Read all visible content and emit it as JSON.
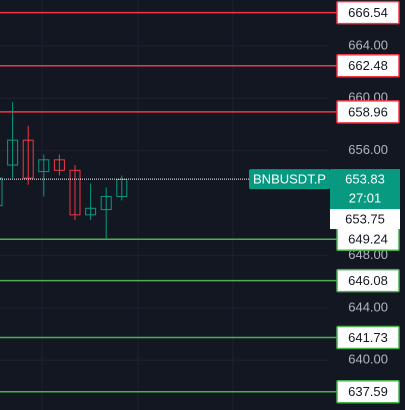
{
  "chart_data": {
    "type": "candlestick",
    "ylim": [
      636.2,
      667.5
    ],
    "yticks": [
      {
        "value": 664,
        "label": "664.00"
      },
      {
        "value": 660,
        "label": "660.00"
      },
      {
        "value": 656,
        "label": "656.00"
      },
      {
        "value": 648,
        "label": "648.00"
      },
      {
        "value": 644,
        "label": "644.00"
      },
      {
        "value": 640,
        "label": "640.00"
      }
    ],
    "grid": true,
    "up_color": "#089981",
    "down_color": "#f23645",
    "candles": {
      "open": [
        651.8,
        654.9,
        656.8,
        654.4,
        655.3,
        654.5,
        651.1,
        651.5,
        652.5
      ],
      "high": [
        654.5,
        659.7,
        657.9,
        655.7,
        655.7,
        654.9,
        653.5,
        653.2,
        654.1
      ],
      "low": [
        651.5,
        653.9,
        653.4,
        652.5,
        654.1,
        650.7,
        650.7,
        649.3,
        652.2
      ],
      "close": [
        653.9,
        656.8,
        653.9,
        655.3,
        654.5,
        651.1,
        651.6,
        652.5,
        653.8
      ]
    },
    "levels": {
      "values": [
        666.54,
        662.48,
        658.96,
        649.24,
        646.08,
        641.73,
        637.59
      ],
      "colors": [
        "#f23645",
        "#f23645",
        "#f23645",
        "#4caf50",
        "#4caf50",
        "#4caf50",
        "#4caf50"
      ]
    },
    "symbol": "BNBUSDT.P",
    "last_price": 653.83,
    "countdown": "27:01",
    "mark_price": 653.75
  }
}
